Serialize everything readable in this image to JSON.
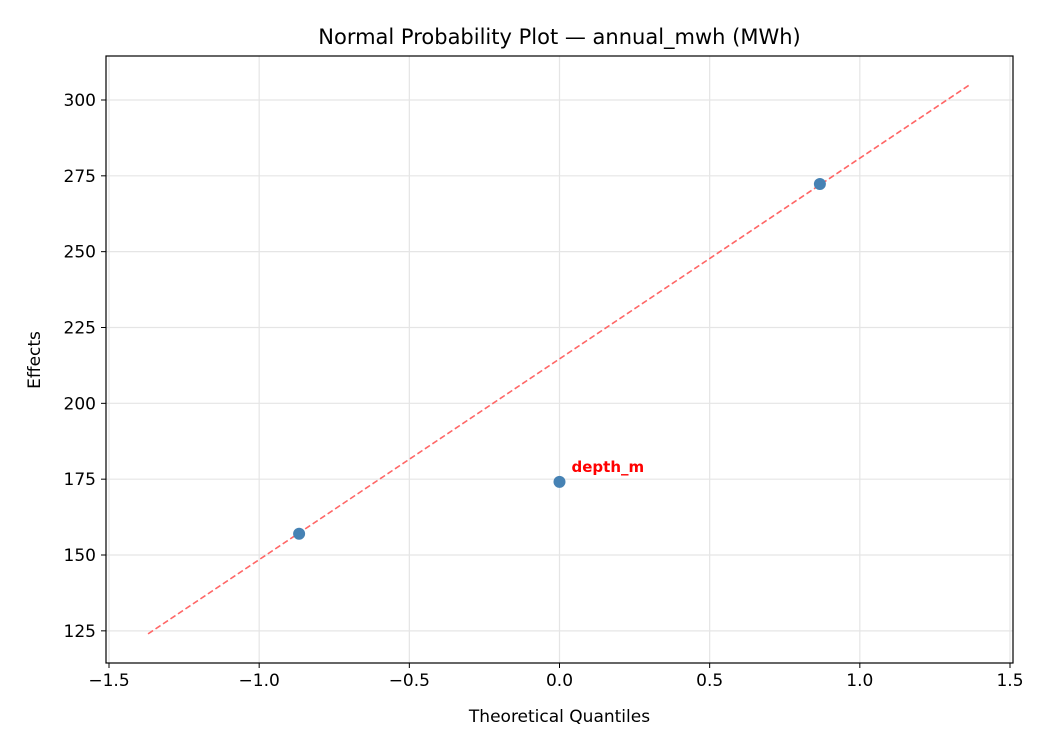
{
  "chart_data": {
    "type": "scatter",
    "title": "Normal Probability Plot — annual_mwh (MWh)",
    "xlabel": "Theoretical Quantiles",
    "ylabel": "Effects",
    "xlim": [
      -1.51,
      1.51
    ],
    "ylim": [
      114.4,
      314.5
    ],
    "xticks": [
      -1.5,
      -1.0,
      -0.5,
      0.0,
      0.5,
      1.0,
      1.5
    ],
    "xtick_labels": [
      "−1.5",
      "−1.0",
      "−0.5",
      "0.0",
      "0.5",
      "1.0",
      "1.5"
    ],
    "yticks": [
      125,
      150,
      175,
      200,
      225,
      250,
      275,
      300
    ],
    "ytick_labels": [
      "125",
      "150",
      "175",
      "200",
      "225",
      "250",
      "275",
      "300"
    ],
    "grid": true,
    "points": [
      {
        "x": -0.867,
        "y": 157.0,
        "label": ""
      },
      {
        "x": 0.0,
        "y": 174.1,
        "label": "depth_m"
      },
      {
        "x": 0.867,
        "y": 272.3,
        "label": ""
      }
    ],
    "reference_line": {
      "x": [
        -1.37,
        1.37
      ],
      "y": [
        124.0,
        305.3
      ],
      "style": "dashed"
    },
    "colors": {
      "points": "#4682b4",
      "line": "#ff6666",
      "label": "#ff0000",
      "grid": "#e5e5e5"
    }
  }
}
